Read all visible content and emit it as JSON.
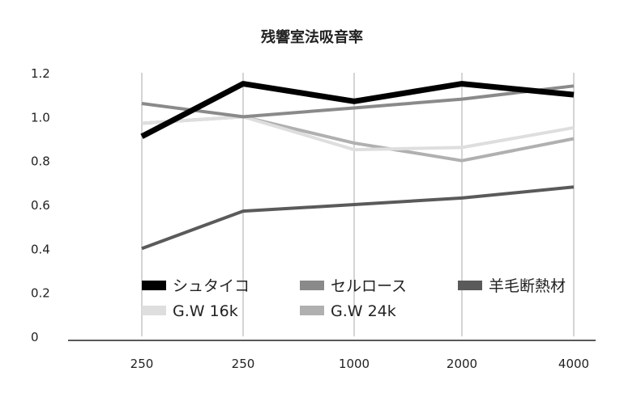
{
  "chart_data": {
    "type": "line",
    "title": "残響室法吸音率",
    "xlabel": "",
    "ylabel": "",
    "categories": [
      "250",
      "250",
      "1000",
      "2000",
      "4000"
    ],
    "ylim": [
      0,
      1.2
    ],
    "yticks": [
      "0",
      "0.2",
      "0.4",
      "0.6",
      "0.8",
      "1.0",
      "1.2"
    ],
    "grid": "vertical",
    "legend": "bottom-inside",
    "series": [
      {
        "name": "シュタイコ",
        "color": "#000000",
        "values": [
          0.91,
          1.15,
          1.07,
          1.15,
          1.1
        ]
      },
      {
        "name": "セルロース",
        "color": "#8a8a8a",
        "values": [
          1.06,
          1.0,
          1.04,
          1.08,
          1.14
        ]
      },
      {
        "name": "羊毛断熱材",
        "color": "#5a5a5a",
        "values": [
          0.4,
          0.57,
          0.6,
          0.63,
          0.68
        ]
      },
      {
        "name": "G.W 16k",
        "color": "#dedede",
        "values": [
          0.97,
          1.0,
          0.85,
          0.86,
          0.95
        ]
      },
      {
        "name": "G.W 24k",
        "color": "#b0b0b0",
        "values": [
          0.97,
          1.0,
          0.88,
          0.8,
          0.9
        ]
      }
    ]
  }
}
